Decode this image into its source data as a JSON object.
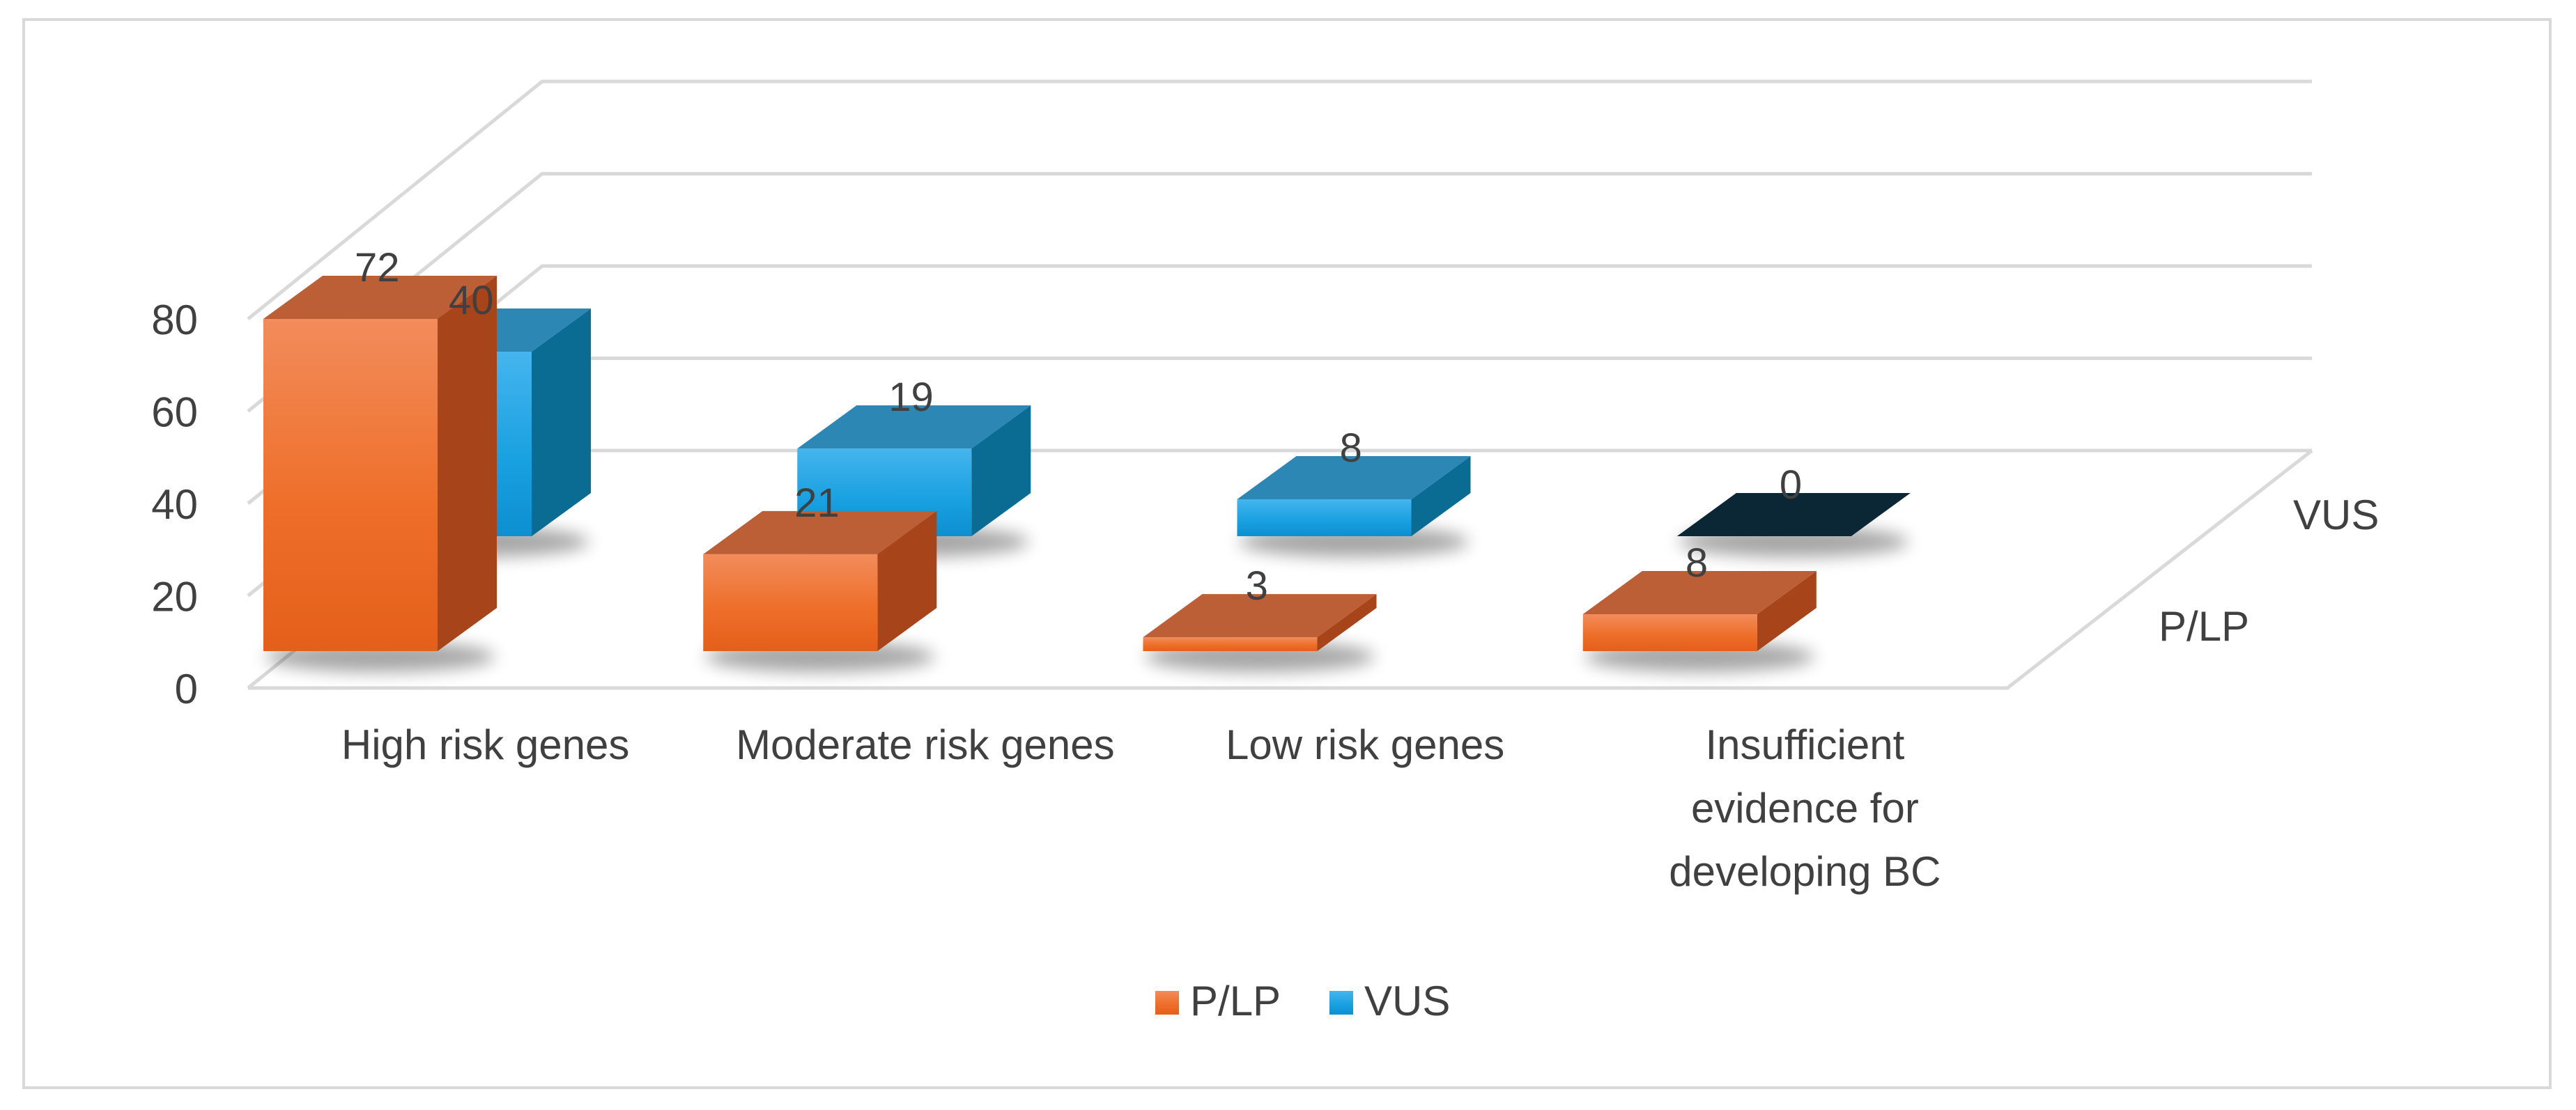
{
  "chart_data": {
    "type": "bar",
    "subtype": "3d-column",
    "title": "",
    "xlabel": "",
    "ylabel": "",
    "categories": [
      "High risk genes",
      "Moderate risk genes",
      "Low risk genes",
      "Insufficient evidence for developing BC"
    ],
    "category_lines": [
      [
        "High risk genes"
      ],
      [
        "Moderate risk genes"
      ],
      [
        "Low risk genes"
      ],
      [
        "Insufficient",
        "evidence for",
        "developing BC"
      ]
    ],
    "series": [
      {
        "name": "P/LP",
        "values": [
          72,
          21,
          3,
          8
        ],
        "color": "#ed7d31"
      },
      {
        "name": "VUS",
        "values": [
          40,
          19,
          8,
          0
        ],
        "color": "#1ba1e2"
      }
    ],
    "ylim": [
      0,
      80
    ],
    "yticks": [
      "0",
      "20",
      "40",
      "60",
      "80"
    ],
    "depth_labels": [
      "P/LP",
      "VUS"
    ],
    "legend": {
      "position": "bottom",
      "entries": [
        "P/LP",
        "VUS"
      ]
    },
    "grid": true,
    "colors": {
      "gridline": "#d9d9d9",
      "text": "#404040",
      "zero_bar": "#0b2735"
    }
  }
}
